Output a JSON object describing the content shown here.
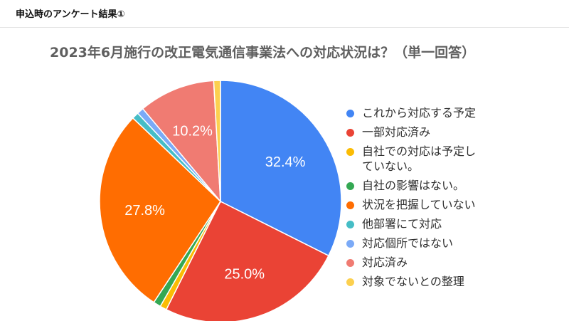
{
  "header": {
    "title": "申込時のアンケート結果①"
  },
  "chart_data": {
    "type": "pie",
    "title": "2023年6月施行の改正電気通信事業法への対応状況は？（単一回答）",
    "slices": [
      {
        "label": "これから対応する予定",
        "value": 32.4,
        "color": "#4285f4",
        "data_label": "32.4%"
      },
      {
        "label": "一部対応済み",
        "value": 25.0,
        "color": "#ea4335",
        "data_label": "25.0%"
      },
      {
        "label": "自社での対応は予定し\nていない。",
        "value": 0.9,
        "color": "#fbbc04",
        "data_label": ""
      },
      {
        "label": "自社の影響はない。",
        "value": 1.0,
        "color": "#34a853",
        "data_label": ""
      },
      {
        "label": "状況を把握していない",
        "value": 27.8,
        "color": "#ff6d01",
        "data_label": "27.8%"
      },
      {
        "label": "他部署にて対応",
        "value": 0.9,
        "color": "#46bdc6",
        "data_label": ""
      },
      {
        "label": "対応個所ではない",
        "value": 0.9,
        "color": "#7baaf7",
        "data_label": ""
      },
      {
        "label": "対応済み",
        "value": 10.2,
        "color": "#f07b72",
        "data_label": "10.2%"
      },
      {
        "label": "対象でないとの整理",
        "value": 0.9,
        "color": "#fcd04f",
        "data_label": ""
      }
    ],
    "legend_position": "right"
  }
}
